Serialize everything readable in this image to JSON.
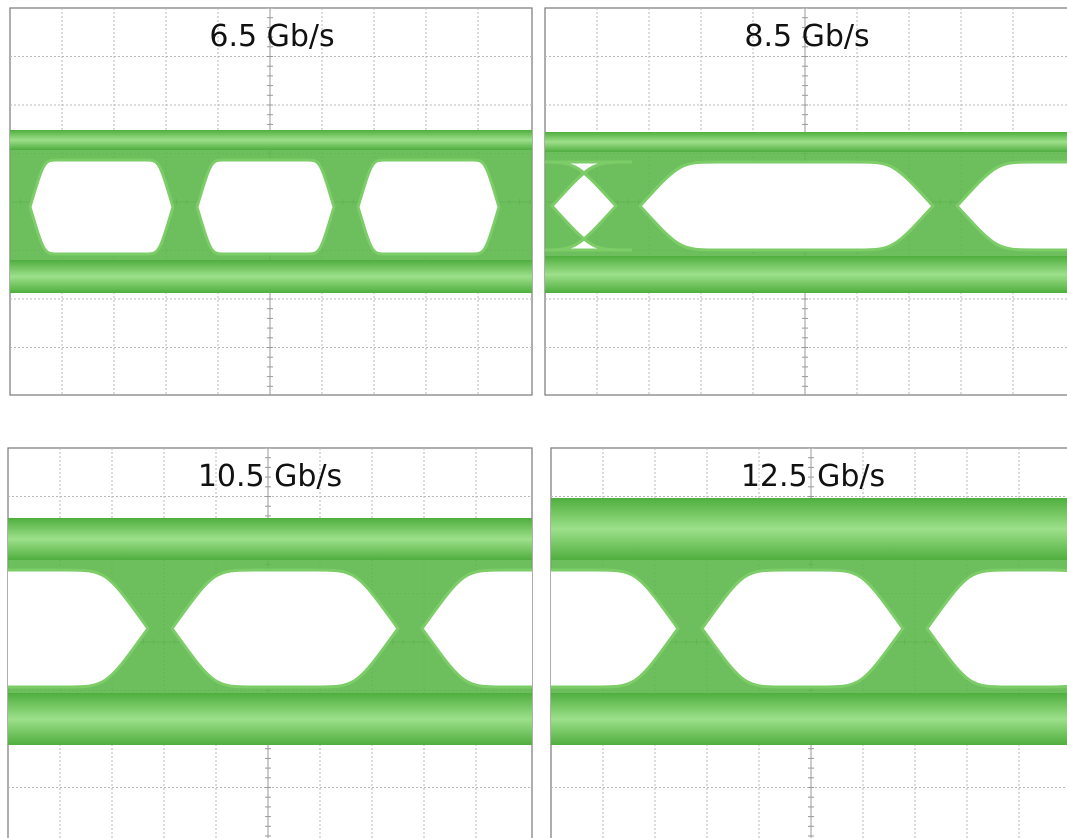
{
  "panels": [
    {
      "title": "6.5 Gb/s"
    },
    {
      "title": "8.5 Gb/s"
    },
    {
      "title": "10.5 Gb/s"
    },
    {
      "title": "12.5 Gb/s"
    }
  ]
}
